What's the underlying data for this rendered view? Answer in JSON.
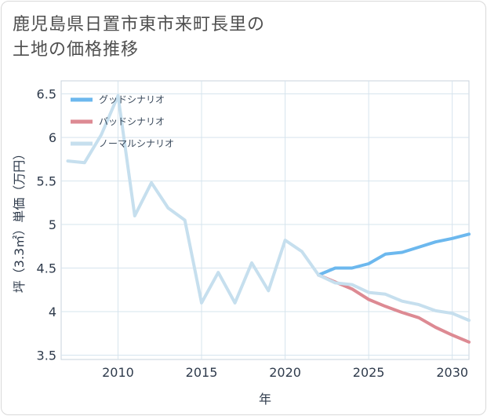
{
  "title_line1": "鹿児島県日置市東市来町長里の",
  "title_line2": "土地の価格推移",
  "chart_data": {
    "type": "line",
    "xlabel": "年",
    "ylabel": "坪（3.3㎡）単価（万円）",
    "xlim": [
      2006.6,
      2031
    ],
    "ylim": [
      3.45,
      6.65
    ],
    "x_ticks": [
      2010,
      2015,
      2020,
      2025,
      2030
    ],
    "y_ticks": [
      3.5,
      4,
      4.5,
      5,
      5.5,
      6,
      6.5
    ],
    "grid": true,
    "legend_position": "top-left",
    "series": [
      {
        "name": "グッドシナリオ",
        "color": "#6cb8ee",
        "x": [
          2022,
          2023,
          2024,
          2025,
          2026,
          2027,
          2028,
          2029,
          2030,
          2031
        ],
        "y": [
          4.42,
          4.5,
          4.5,
          4.55,
          4.66,
          4.68,
          4.74,
          4.8,
          4.84,
          4.89
        ]
      },
      {
        "name": "バッドシナリオ",
        "color": "#dd8a93",
        "x": [
          2022,
          2023,
          2024,
          2025,
          2026,
          2027,
          2028,
          2029,
          2030,
          2031
        ],
        "y": [
          4.42,
          4.34,
          4.26,
          4.14,
          4.06,
          3.99,
          3.93,
          3.82,
          3.73,
          3.65
        ]
      },
      {
        "name": "ノーマルシナリオ",
        "color": "#c6dfee",
        "x": [
          2007,
          2008,
          2009,
          2010,
          2011,
          2012,
          2013,
          2014,
          2015,
          2016,
          2017,
          2018,
          2019,
          2020,
          2021,
          2022,
          2023,
          2024,
          2025,
          2026,
          2027,
          2028,
          2029,
          2030,
          2031
        ],
        "y": [
          5.73,
          5.71,
          6.03,
          6.48,
          5.1,
          5.48,
          5.19,
          5.05,
          4.1,
          4.45,
          4.1,
          4.56,
          4.24,
          4.82,
          4.69,
          4.42,
          4.33,
          4.31,
          4.22,
          4.2,
          4.12,
          4.08,
          4.01,
          3.98,
          3.9
        ]
      }
    ]
  }
}
